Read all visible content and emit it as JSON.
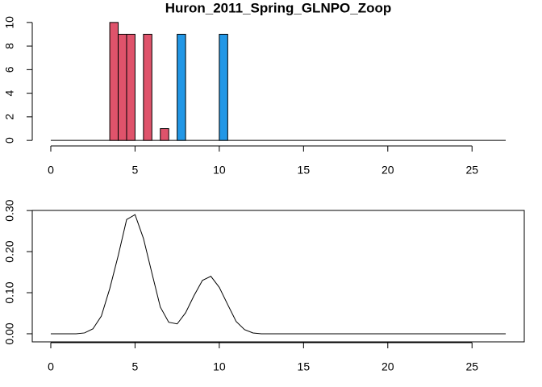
{
  "chart_data": [
    {
      "type": "bar",
      "title": "Huron_2011_Spring_GLNPO_Zoop",
      "series": [
        {
          "color": "#DF536B",
          "x": [
            3.75,
            4.25,
            4.75,
            5.75,
            6.75
          ],
          "values": [
            10,
            9,
            9,
            9,
            1
          ]
        },
        {
          "color": "#2297E6",
          "x": [
            7.75,
            10.25
          ],
          "values": [
            9,
            9
          ]
        }
      ],
      "baseline": [
        0,
        27
      ],
      "xlim": [
        -1.1,
        28.1
      ],
      "xticks": [
        0,
        5,
        10,
        15,
        20,
        25
      ],
      "ylim": [
        -0.4,
        10.4
      ],
      "yticks": [
        0,
        2,
        4,
        6,
        8,
        10
      ]
    },
    {
      "type": "line",
      "color": "#000000",
      "box": true,
      "x": [
        0,
        0.5,
        1,
        1.5,
        2,
        2.5,
        3,
        3.5,
        4,
        4.5,
        5,
        5.5,
        6,
        6.5,
        7,
        7.5,
        8,
        8.5,
        9,
        9.5,
        10,
        10.5,
        11,
        11.5,
        12,
        12.5,
        13,
        13.5,
        14,
        14.5,
        15,
        15.5,
        16,
        16.5,
        17,
        17.5,
        18,
        18.5,
        19,
        19.5,
        20,
        20.5,
        21,
        21.5,
        22,
        22.5,
        23,
        23.5,
        24,
        24.5,
        25,
        25.5,
        26,
        26.5,
        27
      ],
      "values": [
        0,
        0,
        0,
        0,
        0.002,
        0.012,
        0.043,
        0.11,
        0.19,
        0.278,
        0.29,
        0.232,
        0.148,
        0.065,
        0.028,
        0.024,
        0.051,
        0.093,
        0.13,
        0.14,
        0.113,
        0.071,
        0.03,
        0.01,
        0.002,
        0,
        0,
        0,
        0,
        0,
        0,
        0,
        0,
        0,
        0,
        0,
        0,
        0,
        0,
        0,
        0,
        0,
        0,
        0,
        0,
        0,
        0,
        0,
        0,
        0,
        0,
        0,
        0,
        0,
        0
      ],
      "xlim": [
        -1.1,
        28.1
      ],
      "xticks": [
        0,
        5,
        10,
        15,
        20,
        25
      ],
      "ylim": [
        -0.0197,
        0.3003
      ],
      "yticks": [
        {
          "value": 0,
          "label": "0.00"
        },
        {
          "value": 0.1,
          "label": "0.10"
        },
        {
          "value": 0.2,
          "label": "0.20"
        },
        {
          "value": 0.3,
          "label": "0.30"
        }
      ]
    }
  ]
}
